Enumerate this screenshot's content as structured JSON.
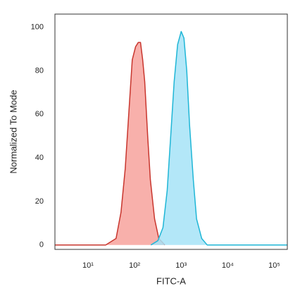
{
  "chart_data": {
    "type": "area",
    "x_label": "FITC-A",
    "y_label": "Normalized To Mode",
    "xscale": "log",
    "xlim": [
      1.95,
      190000
    ],
    "ylim": [
      -2,
      106
    ],
    "xticks": [
      {
        "value": 10,
        "label": "10¹"
      },
      {
        "value": 100,
        "label": "10²"
      },
      {
        "value": 1000,
        "label": "10³"
      },
      {
        "value": 10000,
        "label": "10⁴"
      },
      {
        "value": 100000,
        "label": "10⁵"
      }
    ],
    "yticks": [
      0,
      20,
      40,
      60,
      80,
      100
    ],
    "series": [
      {
        "color": "#c8362e",
        "fill": "#f7a29c",
        "x": [
          1.95,
          24,
          40,
          51,
          63,
          75,
          89,
          105,
          120,
          134,
          149,
          165,
          191,
          218,
          269,
          331,
          447
        ],
        "values": [
          0,
          0,
          3,
          15,
          35,
          60,
          85,
          91,
          93,
          93,
          85,
          75,
          50,
          30,
          12,
          3,
          0
        ]
      },
      {
        "color": "#1fb6d6",
        "fill": "#a6e3f7",
        "x": [
          224,
          316,
          407,
          501,
          596,
          708,
          838,
          1000,
          1148,
          1318,
          1514,
          1820,
          2138,
          2754,
          3631,
          190000
        ],
        "values": [
          0,
          2,
          8,
          25,
          50,
          75,
          92,
          98,
          95,
          80,
          55,
          30,
          12,
          3,
          0,
          0
        ]
      }
    ]
  }
}
